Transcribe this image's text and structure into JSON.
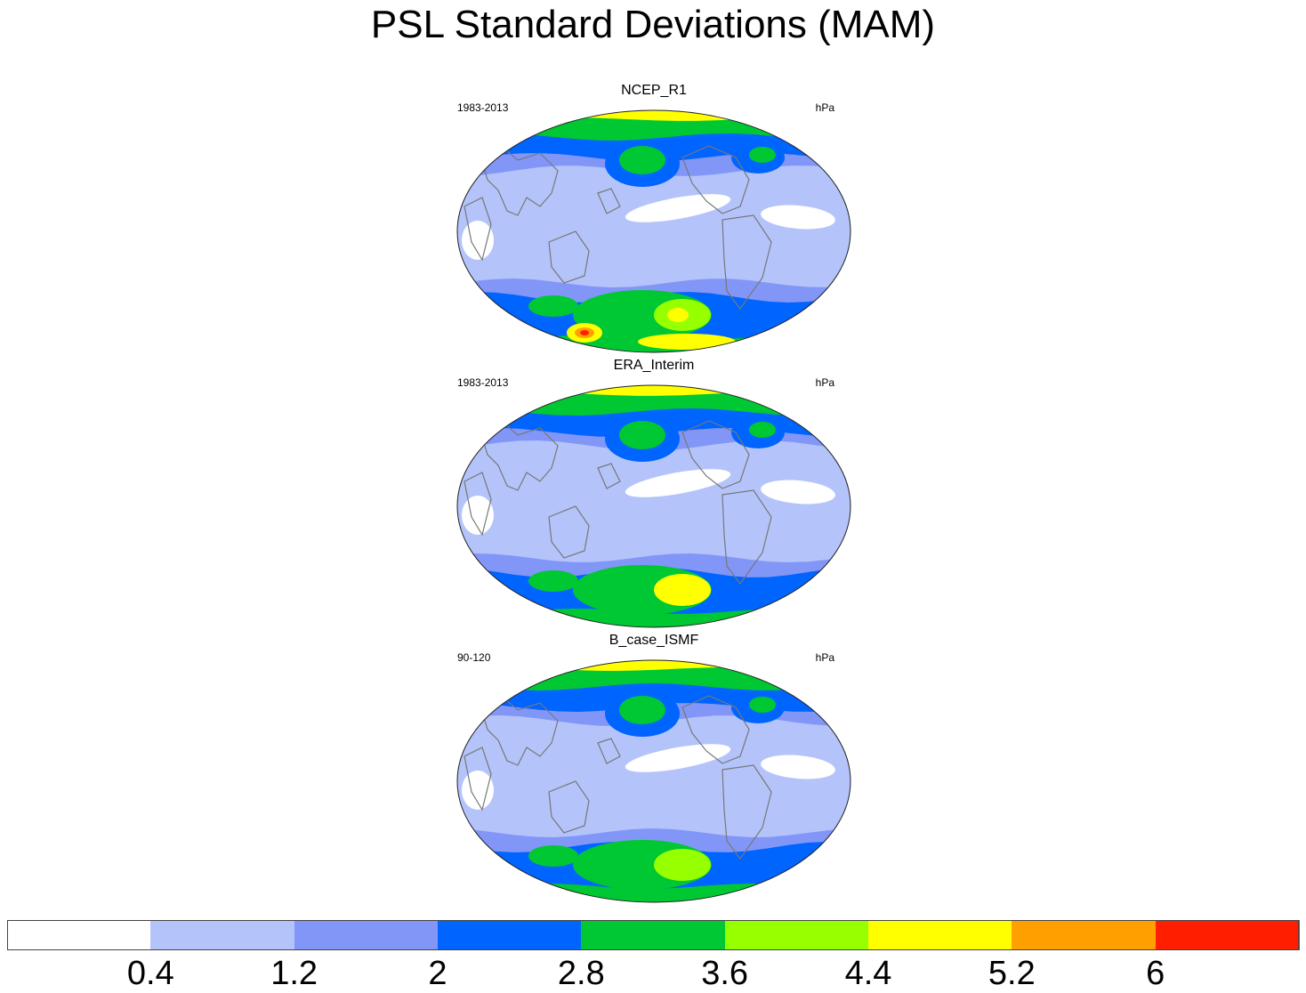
{
  "title": "PSL Standard Deviations (MAM)",
  "panels": [
    {
      "name": "NCEP_R1",
      "period": "1983-2013",
      "units": "hPa"
    },
    {
      "name": "ERA_Interim",
      "period": "1983-2013",
      "units": "hPa"
    },
    {
      "name": "B_case_ISMF",
      "period": "90-120",
      "units": "hPa"
    }
  ],
  "colorbar": {
    "colors": [
      "#ffffff",
      "#b4c4fa",
      "#8296f8",
      "#0064ff",
      "#00c832",
      "#96ff00",
      "#ffff00",
      "#ffa000",
      "#ff1e00"
    ],
    "labels": [
      "0.4",
      "1.2",
      "2",
      "2.8",
      "3.6",
      "4.4",
      "5.2",
      "6"
    ]
  }
}
